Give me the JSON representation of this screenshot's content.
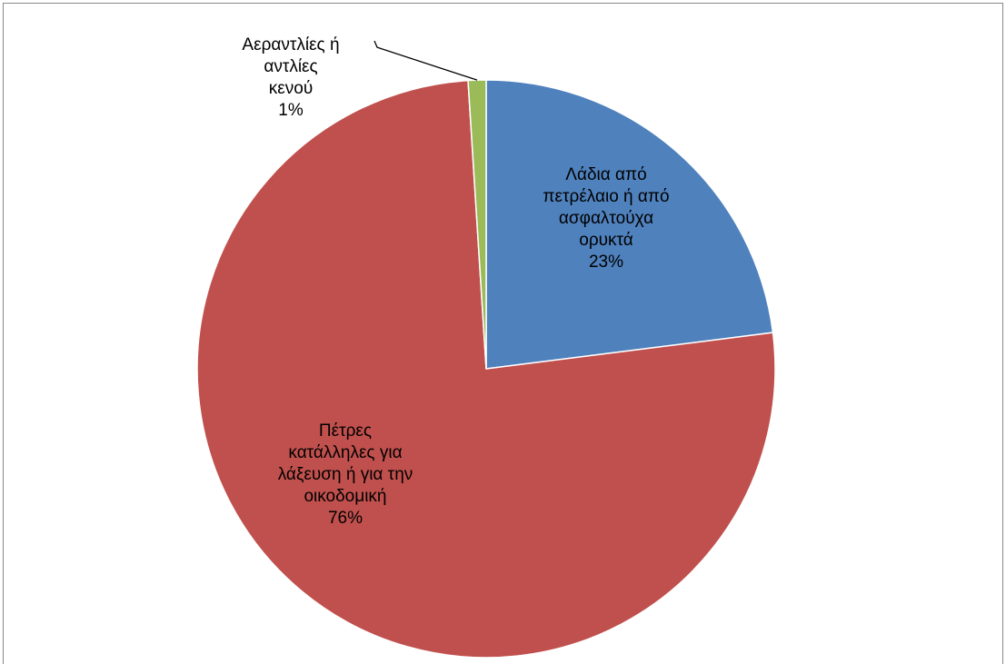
{
  "chart_data": {
    "type": "pie",
    "title": "",
    "slices": [
      {
        "label_lines": [
          "Λάδια από",
          "πετρέλαιο ή από",
          "ασφαλτούχα",
          "ορυκτά"
        ],
        "percent_label": "23%",
        "value": 23,
        "color": "#4f81bd"
      },
      {
        "label_lines": [
          "Πέτρες",
          "κατάλληλες για",
          "λάξευση ή για την",
          "οικοδομική"
        ],
        "percent_label": "76%",
        "value": 76,
        "color": "#c0504d"
      },
      {
        "label_lines": [
          "Αεραντλίες ή",
          "αντλίες",
          "κενού"
        ],
        "percent_label": "1%",
        "value": 1,
        "color": "#9bbb59"
      }
    ],
    "border_color": "#ffffff",
    "frame_color": "#898989",
    "legend": "none"
  }
}
